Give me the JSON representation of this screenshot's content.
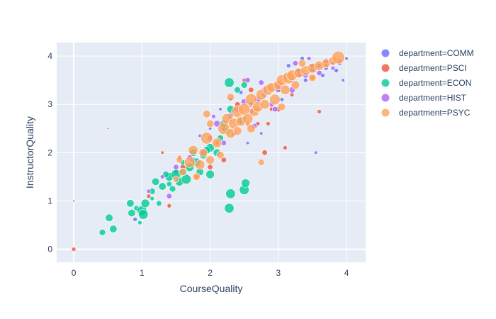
{
  "chart_data": {
    "type": "scatter",
    "title": "",
    "xlabel": "CourseQuality",
    "ylabel": "InstructorQuality",
    "xlim": [
      -0.25,
      4.28
    ],
    "ylim": [
      -0.27,
      4.28
    ],
    "x_ticks": [
      0,
      1,
      2,
      3,
      4
    ],
    "y_ticks": [
      0,
      1,
      2,
      3,
      4
    ],
    "x_tick_labels": [
      "0",
      "1",
      "2",
      "3",
      "4"
    ],
    "y_tick_labels": [
      "0",
      "1",
      "2",
      "3",
      "4"
    ],
    "grid": true,
    "legend_position": "top-right",
    "legend_title": "",
    "colors": {
      "COMM": "#636efa",
      "PSCI": "#EF553B",
      "ECON": "#00cc96",
      "HIST": "#ab63fa",
      "PSYC": "#FFA15A",
      "plot_bg": "#E5ECF6",
      "grid": "#ffffff",
      "text": "#2a3f5f"
    },
    "series": [
      {
        "name": "department=COMM",
        "key": "COMM",
        "points": [
          [
            0.9,
            0.62,
            4
          ],
          [
            1.5,
            1.6,
            4
          ],
          [
            1.75,
            1.85,
            5
          ],
          [
            2.0,
            2.1,
            4
          ],
          [
            2.2,
            2.5,
            5
          ],
          [
            2.3,
            3.1,
            4
          ],
          [
            2.5,
            2.7,
            4
          ],
          [
            2.6,
            3.0,
            5
          ],
          [
            2.7,
            2.9,
            4
          ],
          [
            2.8,
            3.2,
            5
          ],
          [
            2.9,
            3.35,
            4
          ],
          [
            3.0,
            3.3,
            5
          ],
          [
            3.05,
            3.1,
            4
          ],
          [
            3.1,
            3.6,
            4
          ],
          [
            3.2,
            3.5,
            5
          ],
          [
            3.3,
            3.65,
            4
          ],
          [
            3.4,
            3.5,
            4
          ],
          [
            3.5,
            3.7,
            5
          ],
          [
            3.6,
            3.8,
            4
          ],
          [
            3.7,
            3.75,
            4
          ],
          [
            3.8,
            3.85,
            4
          ],
          [
            3.9,
            3.9,
            4
          ],
          [
            4.0,
            3.95,
            3
          ],
          [
            3.55,
            2.0,
            3
          ],
          [
            2.0,
            2.5,
            3
          ],
          [
            2.75,
            2.4,
            3
          ],
          [
            2.15,
            2.9,
            3
          ],
          [
            3.35,
            3.95,
            4
          ],
          [
            3.15,
            3.8,
            4
          ],
          [
            2.45,
            3.25,
            4
          ],
          [
            3.65,
            3.6,
            4
          ],
          [
            3.85,
            3.7,
            4
          ],
          [
            3.95,
            3.5,
            3
          ],
          [
            2.55,
            2.2,
            3
          ],
          [
            1.85,
            2.35,
            3
          ]
        ]
      },
      {
        "name": "department=PSCI",
        "key": "PSCI",
        "points": [
          [
            0.0,
            0.0,
            4
          ],
          [
            0.0,
            1.0,
            2
          ],
          [
            0.5,
            2.5,
            2
          ],
          [
            1.1,
            1.1,
            4
          ],
          [
            1.3,
            2.0,
            3
          ],
          [
            1.4,
            0.9,
            4
          ],
          [
            1.6,
            1.7,
            5
          ],
          [
            1.8,
            1.5,
            4
          ],
          [
            2.0,
            1.7,
            5
          ],
          [
            2.1,
            2.2,
            4
          ],
          [
            2.2,
            1.85,
            5
          ],
          [
            2.3,
            2.8,
            4
          ],
          [
            2.4,
            3.0,
            5
          ],
          [
            2.5,
            3.5,
            4
          ],
          [
            2.6,
            3.3,
            5
          ],
          [
            2.7,
            2.6,
            4
          ],
          [
            2.8,
            2.0,
            5
          ],
          [
            2.9,
            2.9,
            4
          ],
          [
            3.0,
            2.9,
            5
          ],
          [
            3.1,
            2.1,
            4
          ],
          [
            3.2,
            3.2,
            4
          ],
          [
            3.3,
            3.6,
            5
          ],
          [
            3.5,
            3.55,
            4
          ],
          [
            3.7,
            3.8,
            4
          ],
          [
            2.85,
            2.6,
            4
          ],
          [
            2.55,
            2.6,
            4
          ],
          [
            3.6,
            2.85,
            4
          ],
          [
            1.55,
            1.9,
            4
          ]
        ]
      },
      {
        "name": "department=ECON",
        "key": "ECON",
        "points": [
          [
            0.42,
            0.35,
            6
          ],
          [
            0.52,
            0.65,
            7
          ],
          [
            0.58,
            0.42,
            7
          ],
          [
            0.83,
            0.95,
            7
          ],
          [
            0.85,
            0.75,
            7
          ],
          [
            0.92,
            0.85,
            5
          ],
          [
            0.97,
            0.55,
            4
          ],
          [
            1.0,
            0.8,
            9
          ],
          [
            1.02,
            0.72,
            9
          ],
          [
            1.05,
            0.95,
            8
          ],
          [
            1.15,
            1.2,
            6
          ],
          [
            1.2,
            1.4,
            7
          ],
          [
            1.3,
            1.3,
            7
          ],
          [
            1.4,
            1.5,
            8
          ],
          [
            1.45,
            1.25,
            6
          ],
          [
            1.5,
            1.55,
            9
          ],
          [
            1.55,
            1.4,
            8
          ],
          [
            1.6,
            1.6,
            7
          ],
          [
            1.65,
            1.45,
            9
          ],
          [
            1.7,
            1.7,
            8
          ],
          [
            1.75,
            2.0,
            7
          ],
          [
            1.8,
            1.8,
            8
          ],
          [
            1.85,
            1.6,
            7
          ],
          [
            1.9,
            1.95,
            7
          ],
          [
            2.0,
            2.1,
            8
          ],
          [
            2.1,
            2.0,
            7
          ],
          [
            2.15,
            2.3,
            6
          ],
          [
            2.2,
            2.6,
            7
          ],
          [
            2.25,
            2.45,
            6
          ],
          [
            2.3,
            2.9,
            7
          ],
          [
            2.28,
            0.85,
            9
          ],
          [
            2.3,
            1.15,
            9
          ],
          [
            2.5,
            1.23,
            9
          ],
          [
            2.52,
            1.37,
            8
          ],
          [
            2.4,
            3.3,
            6
          ],
          [
            2.5,
            3.4,
            6
          ],
          [
            2.28,
            3.45,
            9
          ],
          [
            2.0,
            1.55,
            8
          ],
          [
            1.25,
            0.95,
            5
          ],
          [
            1.35,
            1.55,
            6
          ],
          [
            1.95,
            2.05,
            7
          ],
          [
            1.6,
            1.8,
            5
          ],
          [
            2.45,
            2.65,
            6
          ],
          [
            1.15,
            1.05,
            4
          ],
          [
            1.4,
            1.35,
            5
          ]
        ]
      },
      {
        "name": "department=HIST",
        "key": "HIST",
        "points": [
          [
            1.1,
            1.2,
            4
          ],
          [
            1.3,
            1.5,
            4
          ],
          [
            1.5,
            1.7,
            5
          ],
          [
            1.7,
            1.9,
            5
          ],
          [
            1.9,
            2.0,
            5
          ],
          [
            2.0,
            2.3,
            5
          ],
          [
            2.1,
            2.6,
            6
          ],
          [
            2.2,
            2.2,
            5
          ],
          [
            2.3,
            2.75,
            5
          ],
          [
            2.4,
            2.9,
            6
          ],
          [
            2.5,
            3.05,
            6
          ],
          [
            2.55,
            3.5,
            5
          ],
          [
            2.6,
            2.85,
            5
          ],
          [
            2.7,
            3.1,
            6
          ],
          [
            2.8,
            3.3,
            6
          ],
          [
            2.9,
            3.0,
            5
          ],
          [
            3.0,
            3.4,
            6
          ],
          [
            3.1,
            3.55,
            5
          ],
          [
            3.2,
            3.3,
            6
          ],
          [
            3.3,
            3.7,
            5
          ],
          [
            3.4,
            3.6,
            5
          ],
          [
            3.5,
            3.8,
            5
          ],
          [
            3.6,
            3.65,
            5
          ],
          [
            3.7,
            3.9,
            5
          ],
          [
            3.8,
            3.75,
            4
          ],
          [
            3.9,
            3.85,
            4
          ],
          [
            1.4,
            1.1,
            5
          ],
          [
            2.35,
            2.4,
            5
          ],
          [
            2.65,
            2.55,
            5
          ],
          [
            3.25,
            3.85,
            5
          ],
          [
            3.45,
            3.95,
            4
          ],
          [
            2.95,
            2.9,
            5
          ],
          [
            2.05,
            2.75,
            4
          ],
          [
            2.75,
            3.45,
            5
          ]
        ]
      },
      {
        "name": "department=PSYC",
        "key": "PSYC",
        "points": [
          [
            1.5,
            1.45,
            6
          ],
          [
            1.6,
            1.6,
            7
          ],
          [
            1.7,
            1.8,
            10
          ],
          [
            1.75,
            2.05,
            9
          ],
          [
            1.85,
            1.75,
            9
          ],
          [
            1.9,
            2.0,
            8
          ],
          [
            1.95,
            2.3,
            11
          ],
          [
            2.0,
            1.85,
            8
          ],
          [
            2.1,
            2.2,
            9
          ],
          [
            2.2,
            2.5,
            11
          ],
          [
            2.25,
            2.7,
            10
          ],
          [
            2.3,
            2.4,
            9
          ],
          [
            2.35,
            2.6,
            10
          ],
          [
            2.4,
            2.85,
            11
          ],
          [
            2.45,
            2.65,
            9
          ],
          [
            2.5,
            2.9,
            11
          ],
          [
            2.55,
            2.7,
            10
          ],
          [
            2.6,
            3.1,
            11
          ],
          [
            2.65,
            2.85,
            9
          ],
          [
            2.7,
            2.95,
            10
          ],
          [
            2.75,
            3.2,
            10
          ],
          [
            2.8,
            3.0,
            9
          ],
          [
            2.85,
            3.3,
            10
          ],
          [
            2.9,
            3.35,
            9
          ],
          [
            2.95,
            3.1,
            10
          ],
          [
            3.0,
            3.4,
            9
          ],
          [
            3.05,
            3.5,
            10
          ],
          [
            3.1,
            3.3,
            9
          ],
          [
            3.15,
            3.55,
            11
          ],
          [
            3.2,
            3.6,
            10
          ],
          [
            3.25,
            3.4,
            8
          ],
          [
            3.3,
            3.65,
            9
          ],
          [
            3.4,
            3.7,
            9
          ],
          [
            3.5,
            3.75,
            9
          ],
          [
            3.6,
            3.8,
            9
          ],
          [
            3.7,
            3.85,
            8
          ],
          [
            3.8,
            3.9,
            8
          ],
          [
            3.88,
            3.97,
            12
          ],
          [
            3.5,
            3.55,
            7
          ],
          [
            3.35,
            3.85,
            7
          ],
          [
            2.4,
            2.45,
            8
          ],
          [
            1.8,
            1.5,
            7
          ],
          [
            1.95,
            2.8,
            7
          ],
          [
            2.75,
            1.8,
            6
          ],
          [
            1.55,
            1.85,
            6
          ],
          [
            2.0,
            2.6,
            7
          ],
          [
            2.3,
            3.15,
            7
          ],
          [
            2.6,
            2.5,
            8
          ],
          [
            3.05,
            2.95,
            7
          ],
          [
            2.15,
            1.95,
            7
          ]
        ]
      }
    ]
  }
}
